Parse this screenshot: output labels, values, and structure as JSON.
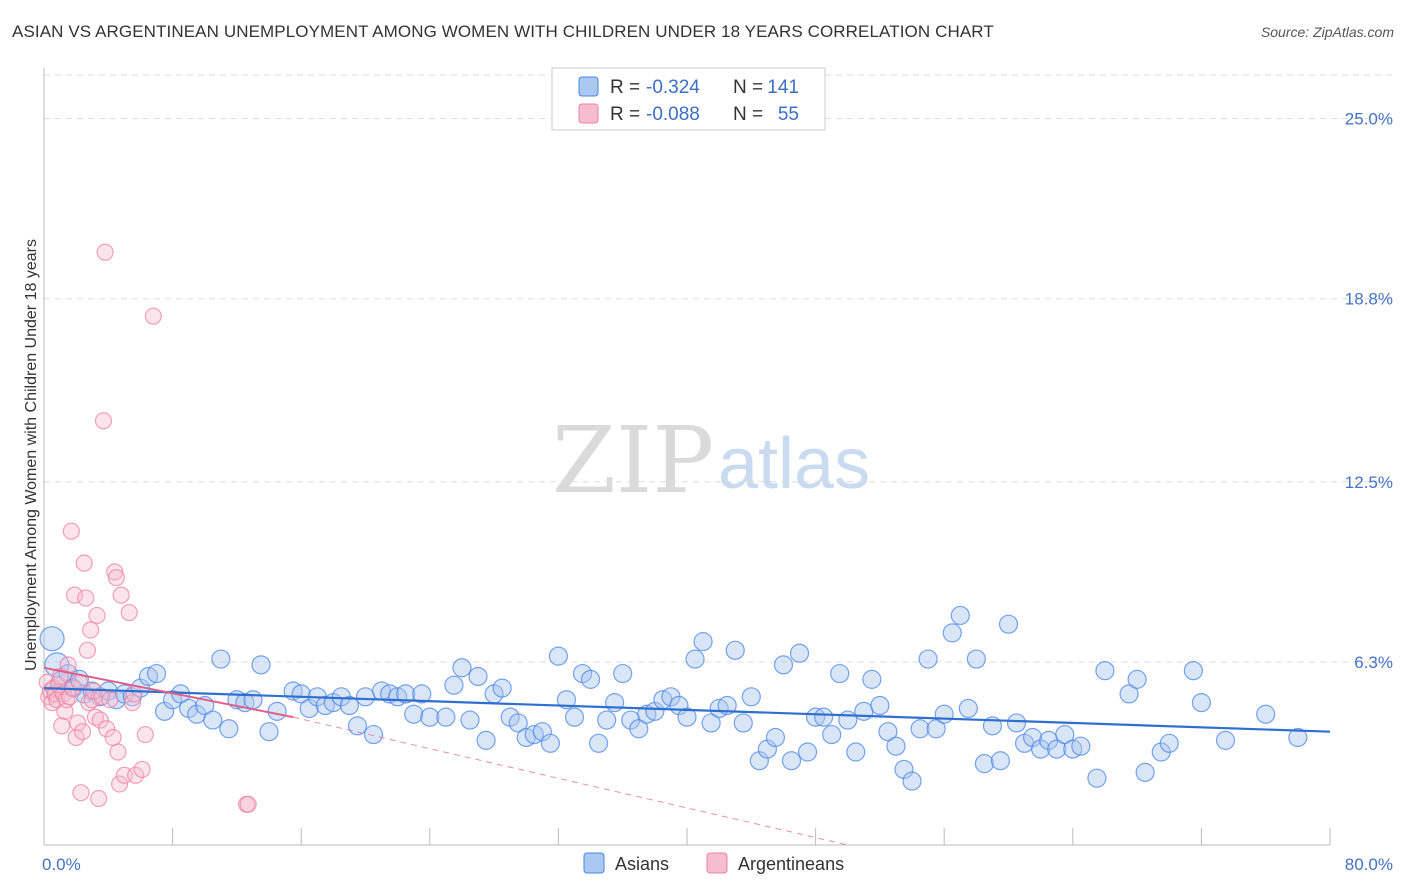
{
  "chart_data": {
    "type": "scatter",
    "title": "ASIAN VS ARGENTINEAN UNEMPLOYMENT AMONG WOMEN WITH CHILDREN UNDER 18 YEARS CORRELATION CHART",
    "source": "Source: ZipAtlas.com",
    "ylabel": "Unemployment Among Women with Children Under 18 years",
    "xlim": [
      0,
      80
    ],
    "ylim": [
      0,
      26.5
    ],
    "x_tick_labels": [
      "0.0%",
      "80.0%"
    ],
    "y_ticks": [
      6.3,
      12.5,
      18.8,
      25.0
    ],
    "y_tick_labels": [
      "6.3%",
      "12.5%",
      "18.8%",
      "25.0%"
    ],
    "watermark": {
      "part1": "ZIP",
      "part2": "atlas"
    },
    "colors": {
      "asians": "#4a86e8",
      "asians_fill": "#aac8f0",
      "argentineans": "#ee82a5",
      "argentineans_fill": "#f6bcd0",
      "trend_asians": "#2f6fd0",
      "trend_argentineans": "#e0608a"
    },
    "legend": {
      "r_label": "R =",
      "n_label": "N =",
      "entries": [
        {
          "r": "-0.324",
          "n": "141"
        },
        {
          "r": "-0.088",
          "n": "55"
        }
      ]
    },
    "series": [
      {
        "name": "Asians",
        "trend": {
          "x0": 0,
          "y0": 5.4,
          "x1": 80,
          "y1": 3.9
        },
        "points": [
          [
            0.5,
            7.1
          ],
          [
            0.8,
            6.2
          ],
          [
            1.2,
            5.6
          ],
          [
            1.5,
            5.9
          ],
          [
            1.8,
            5.4
          ],
          [
            2.2,
            5.7
          ],
          [
            2.5,
            5.2
          ],
          [
            3.0,
            5.3
          ],
          [
            3.5,
            5.1
          ],
          [
            4.0,
            5.3
          ],
          [
            4.5,
            5.0
          ],
          [
            5.0,
            5.2
          ],
          [
            5.5,
            5.1
          ],
          [
            6.0,
            5.4
          ],
          [
            6.5,
            5.8
          ],
          [
            7.0,
            5.9
          ],
          [
            7.5,
            4.6
          ],
          [
            8.0,
            5.0
          ],
          [
            8.5,
            5.2
          ],
          [
            9.0,
            4.7
          ],
          [
            9.5,
            4.5
          ],
          [
            10.0,
            4.8
          ],
          [
            10.5,
            4.3
          ],
          [
            11.0,
            6.4
          ],
          [
            11.5,
            4.0
          ],
          [
            12.0,
            5.0
          ],
          [
            12.5,
            4.9
          ],
          [
            13.0,
            5.0
          ],
          [
            13.5,
            6.2
          ],
          [
            14.0,
            3.9
          ],
          [
            14.5,
            4.6
          ],
          [
            15.5,
            5.3
          ],
          [
            16.0,
            5.2
          ],
          [
            16.5,
            4.7
          ],
          [
            17.0,
            5.1
          ],
          [
            17.5,
            4.8
          ],
          [
            18.0,
            4.9
          ],
          [
            18.5,
            5.1
          ],
          [
            19.0,
            4.8
          ],
          [
            19.5,
            4.1
          ],
          [
            20.0,
            5.1
          ],
          [
            20.5,
            3.8
          ],
          [
            21.0,
            5.3
          ],
          [
            21.5,
            5.2
          ],
          [
            22.0,
            5.1
          ],
          [
            22.5,
            5.2
          ],
          [
            23.0,
            4.5
          ],
          [
            23.5,
            5.2
          ],
          [
            24.0,
            4.4
          ],
          [
            25.0,
            4.4
          ],
          [
            25.5,
            5.5
          ],
          [
            26.0,
            6.1
          ],
          [
            26.5,
            4.3
          ],
          [
            27.0,
            5.8
          ],
          [
            27.5,
            3.6
          ],
          [
            28.0,
            5.2
          ],
          [
            28.5,
            5.4
          ],
          [
            29.0,
            4.4
          ],
          [
            29.5,
            4.2
          ],
          [
            30.0,
            3.7
          ],
          [
            30.5,
            3.8
          ],
          [
            31.0,
            3.9
          ],
          [
            31.5,
            3.5
          ],
          [
            32.0,
            6.5
          ],
          [
            32.5,
            5.0
          ],
          [
            33.0,
            4.4
          ],
          [
            33.5,
            5.9
          ],
          [
            34.0,
            5.7
          ],
          [
            34.5,
            3.5
          ],
          [
            35.0,
            4.3
          ],
          [
            35.5,
            4.9
          ],
          [
            36.0,
            5.9
          ],
          [
            36.5,
            4.3
          ],
          [
            37.0,
            4.0
          ],
          [
            37.5,
            4.5
          ],
          [
            38.0,
            4.6
          ],
          [
            38.5,
            5.0
          ],
          [
            39.0,
            5.1
          ],
          [
            39.5,
            4.8
          ],
          [
            40.0,
            4.4
          ],
          [
            40.5,
            6.4
          ],
          [
            41.0,
            7.0
          ],
          [
            41.5,
            4.2
          ],
          [
            42.0,
            4.7
          ],
          [
            42.5,
            4.8
          ],
          [
            43.0,
            6.7
          ],
          [
            43.5,
            4.2
          ],
          [
            44.0,
            5.1
          ],
          [
            44.5,
            2.9
          ],
          [
            45.0,
            3.3
          ],
          [
            45.5,
            3.7
          ],
          [
            46.0,
            6.2
          ],
          [
            46.5,
            2.9
          ],
          [
            47.0,
            6.6
          ],
          [
            47.5,
            3.2
          ],
          [
            48.0,
            4.4
          ],
          [
            48.5,
            4.4
          ],
          [
            49.0,
            3.8
          ],
          [
            49.5,
            5.9
          ],
          [
            50.0,
            4.3
          ],
          [
            50.5,
            3.2
          ],
          [
            51.0,
            4.6
          ],
          [
            51.5,
            5.7
          ],
          [
            52.0,
            4.8
          ],
          [
            52.5,
            3.9
          ],
          [
            53.0,
            3.4
          ],
          [
            53.5,
            2.6
          ],
          [
            54.0,
            2.2
          ],
          [
            54.5,
            4.0
          ],
          [
            55.0,
            6.4
          ],
          [
            55.5,
            4.0
          ],
          [
            56.0,
            4.5
          ],
          [
            56.5,
            7.3
          ],
          [
            57.0,
            7.9
          ],
          [
            57.5,
            4.7
          ],
          [
            58.0,
            6.4
          ],
          [
            58.5,
            2.8
          ],
          [
            59.0,
            4.1
          ],
          [
            59.5,
            2.9
          ],
          [
            60.0,
            7.6
          ],
          [
            60.5,
            4.2
          ],
          [
            61.0,
            3.5
          ],
          [
            61.5,
            3.7
          ],
          [
            62.0,
            3.3
          ],
          [
            62.5,
            3.6
          ],
          [
            63.0,
            3.3
          ],
          [
            63.5,
            3.8
          ],
          [
            64.0,
            3.3
          ],
          [
            64.5,
            3.4
          ],
          [
            65.5,
            2.3
          ],
          [
            66.0,
            6.0
          ],
          [
            67.5,
            5.2
          ],
          [
            68.0,
            5.7
          ],
          [
            68.5,
            2.5
          ],
          [
            69.5,
            3.2
          ],
          [
            70.0,
            3.5
          ],
          [
            71.5,
            6.0
          ],
          [
            73.5,
            3.6
          ],
          [
            76.0,
            4.5
          ],
          [
            78.0,
            3.7
          ],
          [
            72.0,
            4.9
          ]
        ]
      },
      {
        "name": "Argentineans",
        "trend": {
          "x0": 0,
          "y0": 6.1,
          "x1": 15.5,
          "y1": 4.4
        },
        "trend_ext": {
          "x0": 15.5,
          "y0": 4.4,
          "x1": 50,
          "y1": 0.0
        },
        "points": [
          [
            0.2,
            5.6
          ],
          [
            0.3,
            5.1
          ],
          [
            0.4,
            5.3
          ],
          [
            0.5,
            4.9
          ],
          [
            0.6,
            5.4
          ],
          [
            0.7,
            5.2
          ],
          [
            0.8,
            5.0
          ],
          [
            0.9,
            5.5
          ],
          [
            1.0,
            5.8
          ],
          [
            1.1,
            4.1
          ],
          [
            1.2,
            5.2
          ],
          [
            1.3,
            4.6
          ],
          [
            1.4,
            5.0
          ],
          [
            1.5,
            6.2
          ],
          [
            1.6,
            5.1
          ],
          [
            1.7,
            10.8
          ],
          [
            1.8,
            5.4
          ],
          [
            1.9,
            8.6
          ],
          [
            2.0,
            3.7
          ],
          [
            2.1,
            4.2
          ],
          [
            2.2,
            5.6
          ],
          [
            2.3,
            1.8
          ],
          [
            2.4,
            3.9
          ],
          [
            2.5,
            9.7
          ],
          [
            2.6,
            8.5
          ],
          [
            2.7,
            6.7
          ],
          [
            2.8,
            4.9
          ],
          [
            2.9,
            7.4
          ],
          [
            3.0,
            5.0
          ],
          [
            3.1,
            5.3
          ],
          [
            3.2,
            4.4
          ],
          [
            3.3,
            7.9
          ],
          [
            3.4,
            1.6
          ],
          [
            3.5,
            4.3
          ],
          [
            3.6,
            5.1
          ],
          [
            3.7,
            14.6
          ],
          [
            3.8,
            20.4
          ],
          [
            3.9,
            4.0
          ],
          [
            4.1,
            5.0
          ],
          [
            4.3,
            3.7
          ],
          [
            4.4,
            9.4
          ],
          [
            4.5,
            9.2
          ],
          [
            4.6,
            3.2
          ],
          [
            4.7,
            2.1
          ],
          [
            4.8,
            8.6
          ],
          [
            5.0,
            2.4
          ],
          [
            5.3,
            8.0
          ],
          [
            5.5,
            4.9
          ],
          [
            5.6,
            5.2
          ],
          [
            5.7,
            2.4
          ],
          [
            6.1,
            2.6
          ],
          [
            6.3,
            3.8
          ],
          [
            6.8,
            18.2
          ],
          [
            12.6,
            1.4
          ],
          [
            12.7,
            1.4
          ]
        ]
      }
    ],
    "bottom_legend": [
      "Asians",
      "Argentineans"
    ]
  }
}
